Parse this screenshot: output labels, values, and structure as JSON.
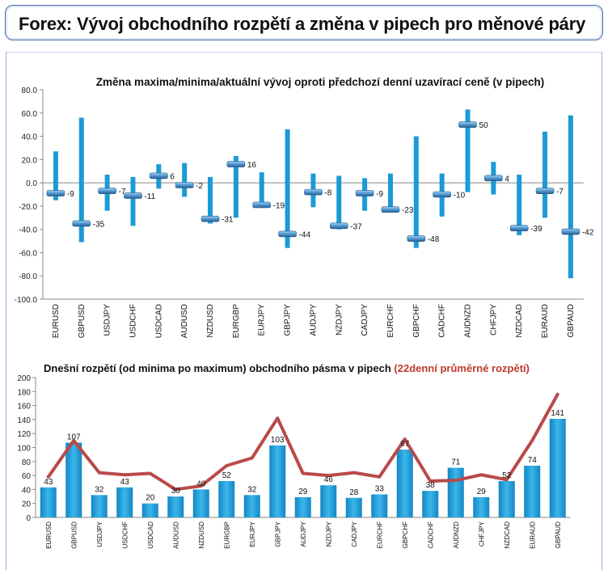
{
  "header": {
    "title": "Forex: Vývoj obchodního rozpětí a změna v pipech pro měnové páry"
  },
  "chart_data": [
    {
      "type": "bar",
      "title": "Změna maxima/minima/aktuální vývoj oproti předchozí denní uzavírací ceně (v pipech)",
      "categories": [
        "EURUSD",
        "GBPUSD",
        "USDJPY",
        "USDCHF",
        "USDCAD",
        "AUDUSD",
        "NZDUSD",
        "EURGBP",
        "EURJPY",
        "GBPJPY",
        "AUDJPY",
        "NZDJPY",
        "CADJPY",
        "EURCHF",
        "GBPCHF",
        "CADCHF",
        "AUDNZD",
        "CHFJPY",
        "NZDCAD",
        "EURAUD",
        "GBPAUD"
      ],
      "series": [
        {
          "name": "",
          "values": [
            -9,
            -35,
            -7,
            -11,
            6,
            -2,
            -31,
            16,
            -19,
            -44,
            -8,
            -37,
            -9,
            -23,
            -48,
            -10,
            50,
            4,
            -39,
            -7,
            -42
          ]
        }
      ],
      "high": [
        27,
        56,
        7,
        5,
        16,
        17,
        5,
        23,
        9,
        46,
        8,
        6,
        4,
        8,
        40,
        8,
        63,
        18,
        7,
        44,
        58
      ],
      "low": [
        -15,
        -51,
        -24,
        -37,
        -5,
        -12,
        -35,
        -30,
        -21,
        -56,
        -21,
        -40,
        -24,
        -24,
        -56,
        -29,
        -8,
        -10,
        -45,
        -30,
        -82
      ],
      "ylim": [
        -100,
        80
      ],
      "yticks": [
        "80.0",
        "60.0",
        "40.0",
        "20.0",
        "0.0",
        "-20.0",
        "-40.0",
        "-60.0",
        "-80.0",
        "-100.0"
      ],
      "colors": {
        "bar": "#1c9ad6",
        "marker": "#5ea4d9",
        "marker_dark": "#2b5e8c"
      }
    },
    {
      "type": "bar",
      "title": "Dnešní rozpětí (od minima po maximum) obchodního pásma v pipech",
      "title_highlight": "(22denní průměrné rozpětí)",
      "categories": [
        "EURUSD",
        "GBPUSD",
        "USDJPY",
        "USDCHF",
        "USDCAD",
        "AUDUSD",
        "NZDUSD",
        "EURGBP",
        "EURJPY",
        "GBPJPY",
        "AUDJPY",
        "NZDJPY",
        "CADJPY",
        "EURCHF",
        "GBPCHF",
        "CADCHF",
        "AUDNZD",
        "CHFJPY",
        "NZDCAD",
        "EURAUD",
        "GBPAUD"
      ],
      "series": [
        {
          "name": "",
          "type": "bar",
          "values": [
            43,
            107,
            32,
            43,
            20,
            30,
            40,
            52,
            32,
            103,
            29,
            46,
            28,
            33,
            97,
            38,
            71,
            29,
            52,
            74,
            141
          ]
        },
        {
          "name": "22denní průměrné rozpětí",
          "type": "line",
          "values": [
            58,
            110,
            64,
            61,
            63,
            40,
            45,
            74,
            85,
            142,
            63,
            60,
            64,
            58,
            112,
            52,
            53,
            61,
            54,
            110,
            176
          ]
        }
      ],
      "ylim": [
        0,
        200
      ],
      "yticks": [
        "200",
        "180",
        "160",
        "140",
        "120",
        "100",
        "80",
        "60",
        "40",
        "20",
        "0"
      ],
      "colors": {
        "bar": "#1c9ad6",
        "line": "#b94a4a",
        "highlight": "#c0392b"
      }
    }
  ]
}
